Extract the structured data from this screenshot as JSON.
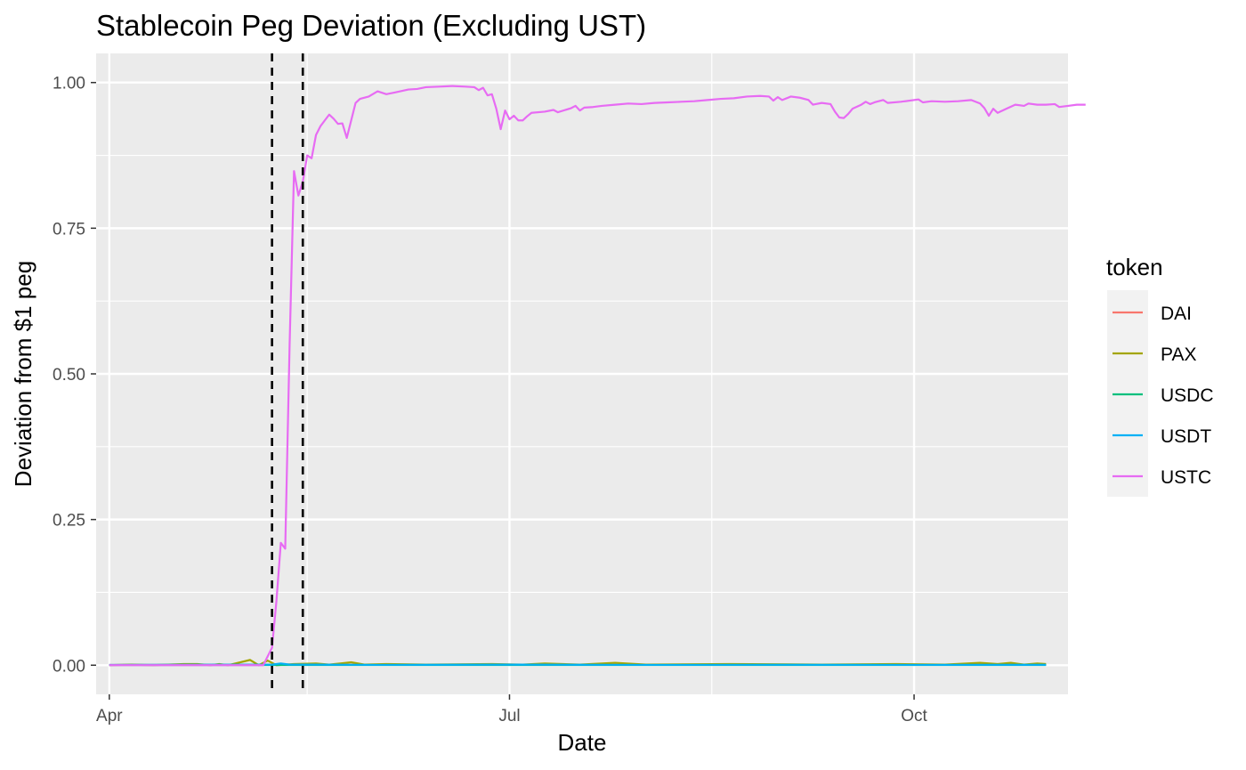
{
  "chart_data": {
    "type": "line",
    "title": "Stablecoin Peg Deviation (Excluding UST)",
    "xlabel": "Date",
    "ylabel": "Deviation from $1 peg",
    "x_axis": {
      "type": "date",
      "range": [
        "2022-03-29",
        "2022-11-05"
      ],
      "ticks": [
        {
          "date": "2022-04-01",
          "label": "Apr"
        },
        {
          "date": "2022-07-01",
          "label": "Jul"
        },
        {
          "date": "2022-10-01",
          "label": "Oct"
        }
      ],
      "minor_ticks": [
        "2022-05-16",
        "2022-08-16"
      ]
    },
    "y_axis": {
      "range": [
        -0.05,
        1.05
      ],
      "ticks": [
        0.0,
        0.25,
        0.5,
        0.75,
        1.0
      ],
      "tick_labels": [
        "0.00",
        "0.25",
        "0.50",
        "0.75",
        "1.00"
      ],
      "minor_ticks": [
        0.125,
        0.375,
        0.625,
        0.875
      ]
    },
    "grid": true,
    "vlines": [
      "2022-05-08",
      "2022-05-15"
    ],
    "legend": {
      "title": "token",
      "position": "right"
    },
    "series": [
      {
        "name": "DAI",
        "color": "#F8766D",
        "points": [
          [
            "2022-04-01",
            0.0005
          ],
          [
            "2022-05-01",
            0.0008
          ],
          [
            "2022-06-01",
            0.0006
          ],
          [
            "2022-07-01",
            0.0008
          ],
          [
            "2022-08-01",
            0.0005
          ],
          [
            "2022-09-01",
            0.0007
          ],
          [
            "2022-10-01",
            0.0006
          ],
          [
            "2022-10-31",
            0.0008
          ]
        ]
      },
      {
        "name": "PAX",
        "color": "#A3A500",
        "points": [
          [
            "2022-04-01",
            0.0
          ],
          [
            "2022-04-06",
            0.001
          ],
          [
            "2022-04-11",
            0.0
          ],
          [
            "2022-04-18",
            0.002
          ],
          [
            "2022-04-21",
            0.002
          ],
          [
            "2022-04-24",
            0.0
          ],
          [
            "2022-04-26",
            0.002
          ],
          [
            "2022-04-28",
            0.0
          ],
          [
            "2022-05-03",
            0.009
          ],
          [
            "2022-05-05",
            0.0
          ],
          [
            "2022-05-07",
            0.008
          ],
          [
            "2022-05-09",
            0.0
          ],
          [
            "2022-05-13",
            0.002
          ],
          [
            "2022-05-18",
            0.003
          ],
          [
            "2022-05-21",
            0.001
          ],
          [
            "2022-05-26",
            0.005
          ],
          [
            "2022-05-29",
            0.001
          ],
          [
            "2022-06-03",
            0.002
          ],
          [
            "2022-06-12",
            0.001
          ],
          [
            "2022-06-27",
            0.002
          ],
          [
            "2022-07-04",
            0.001
          ],
          [
            "2022-07-09",
            0.003
          ],
          [
            "2022-07-17",
            0.001
          ],
          [
            "2022-07-25",
            0.004
          ],
          [
            "2022-08-01",
            0.001
          ],
          [
            "2022-08-20",
            0.002
          ],
          [
            "2022-09-10",
            0.001
          ],
          [
            "2022-09-27",
            0.002
          ],
          [
            "2022-10-08",
            0.001
          ],
          [
            "2022-10-13",
            0.003
          ],
          [
            "2022-10-16",
            0.004
          ],
          [
            "2022-10-20",
            0.002
          ],
          [
            "2022-10-23",
            0.004
          ],
          [
            "2022-10-26",
            0.001
          ],
          [
            "2022-10-29",
            0.003
          ],
          [
            "2022-10-31",
            0.002
          ]
        ]
      },
      {
        "name": "USDC",
        "color": "#00BF7D",
        "points": [
          [
            "2022-04-01",
            0.0003
          ],
          [
            "2022-05-01",
            0.0004
          ],
          [
            "2022-06-01",
            0.0003
          ],
          [
            "2022-07-01",
            0.0004
          ],
          [
            "2022-08-01",
            0.0003
          ],
          [
            "2022-09-01",
            0.0004
          ],
          [
            "2022-10-01",
            0.0003
          ],
          [
            "2022-10-31",
            0.0004
          ]
        ]
      },
      {
        "name": "USDT",
        "color": "#00B0F6",
        "points": [
          [
            "2022-04-01",
            0.0005
          ],
          [
            "2022-05-08",
            0.001
          ],
          [
            "2022-05-10",
            0.003
          ],
          [
            "2022-05-12",
            0.001
          ],
          [
            "2022-05-16",
            0.001
          ],
          [
            "2022-06-01",
            0.0005
          ],
          [
            "2022-07-01",
            0.001
          ],
          [
            "2022-08-01",
            0.0005
          ],
          [
            "2022-09-01",
            0.0007
          ],
          [
            "2022-10-01",
            0.0005
          ],
          [
            "2022-10-31",
            0.0006
          ]
        ]
      },
      {
        "name": "USTC",
        "color": "#E76BF3",
        "points": [
          [
            "2022-04-01",
            0.0
          ],
          [
            "2022-05-06",
            0.0
          ],
          [
            "2022-05-08",
            0.03
          ],
          [
            "2022-05-09",
            0.11
          ],
          [
            "2022-05-10",
            0.21
          ],
          [
            "2022-05-11",
            0.2
          ],
          [
            "2022-05-12",
            0.55
          ],
          [
            "2022-05-13",
            0.848
          ],
          [
            "2022-05-14",
            0.806
          ],
          [
            "2022-05-15",
            0.83
          ],
          [
            "2022-05-16",
            0.875
          ],
          [
            "2022-05-17",
            0.87
          ],
          [
            "2022-05-18",
            0.91
          ],
          [
            "2022-05-19",
            0.925
          ],
          [
            "2022-05-20",
            0.935
          ],
          [
            "2022-05-21",
            0.945
          ],
          [
            "2022-05-22",
            0.938
          ],
          [
            "2022-05-23",
            0.929
          ],
          [
            "2022-05-24",
            0.93
          ],
          [
            "2022-05-25",
            0.905
          ],
          [
            "2022-05-26",
            0.935
          ],
          [
            "2022-05-27",
            0.965
          ],
          [
            "2022-05-28",
            0.972
          ],
          [
            "2022-05-30",
            0.976
          ],
          [
            "2022-06-01",
            0.985
          ],
          [
            "2022-06-03",
            0.98
          ],
          [
            "2022-06-05",
            0.983
          ],
          [
            "2022-06-08",
            0.988
          ],
          [
            "2022-06-10",
            0.989
          ],
          [
            "2022-06-12",
            0.992
          ],
          [
            "2022-06-15",
            0.993
          ],
          [
            "2022-06-18",
            0.994
          ],
          [
            "2022-06-21",
            0.993
          ],
          [
            "2022-06-23",
            0.992
          ],
          [
            "2022-06-24",
            0.987
          ],
          [
            "2022-06-25",
            0.991
          ],
          [
            "2022-06-26",
            0.978
          ],
          [
            "2022-06-27",
            0.98
          ],
          [
            "2022-06-28",
            0.955
          ],
          [
            "2022-06-29",
            0.92
          ],
          [
            "2022-06-30",
            0.952
          ],
          [
            "2022-07-01",
            0.937
          ],
          [
            "2022-07-02",
            0.943
          ],
          [
            "2022-07-03",
            0.935
          ],
          [
            "2022-07-04",
            0.935
          ],
          [
            "2022-07-05",
            0.942
          ],
          [
            "2022-07-06",
            0.948
          ],
          [
            "2022-07-09",
            0.95
          ],
          [
            "2022-07-11",
            0.953
          ],
          [
            "2022-07-12",
            0.949
          ],
          [
            "2022-07-15",
            0.956
          ],
          [
            "2022-07-16",
            0.96
          ],
          [
            "2022-07-17",
            0.952
          ],
          [
            "2022-07-18",
            0.957
          ],
          [
            "2022-07-20",
            0.958
          ],
          [
            "2022-07-22",
            0.96
          ],
          [
            "2022-07-25",
            0.962
          ],
          [
            "2022-07-28",
            0.964
          ],
          [
            "2022-07-31",
            0.963
          ],
          [
            "2022-08-03",
            0.965
          ],
          [
            "2022-08-06",
            0.966
          ],
          [
            "2022-08-09",
            0.967
          ],
          [
            "2022-08-12",
            0.968
          ],
          [
            "2022-08-15",
            0.97
          ],
          [
            "2022-08-18",
            0.972
          ],
          [
            "2022-08-21",
            0.973
          ],
          [
            "2022-08-24",
            0.976
          ],
          [
            "2022-08-27",
            0.977
          ],
          [
            "2022-08-29",
            0.976
          ],
          [
            "2022-08-30",
            0.969
          ],
          [
            "2022-08-31",
            0.975
          ],
          [
            "2022-09-01",
            0.97
          ],
          [
            "2022-09-03",
            0.976
          ],
          [
            "2022-09-05",
            0.974
          ],
          [
            "2022-09-07",
            0.97
          ],
          [
            "2022-09-08",
            0.962
          ],
          [
            "2022-09-10",
            0.965
          ],
          [
            "2022-09-12",
            0.963
          ],
          [
            "2022-09-13",
            0.95
          ],
          [
            "2022-09-14",
            0.94
          ],
          [
            "2022-09-15",
            0.939
          ],
          [
            "2022-09-16",
            0.946
          ],
          [
            "2022-09-17",
            0.955
          ],
          [
            "2022-09-19",
            0.962
          ],
          [
            "2022-09-20",
            0.967
          ],
          [
            "2022-09-21",
            0.963
          ],
          [
            "2022-09-22",
            0.966
          ],
          [
            "2022-09-24",
            0.97
          ],
          [
            "2022-09-25",
            0.965
          ],
          [
            "2022-09-28",
            0.967
          ],
          [
            "2022-10-02",
            0.971
          ],
          [
            "2022-10-03",
            0.966
          ],
          [
            "2022-10-05",
            0.968
          ],
          [
            "2022-10-08",
            0.967
          ],
          [
            "2022-10-11",
            0.968
          ],
          [
            "2022-10-14",
            0.97
          ],
          [
            "2022-10-16",
            0.964
          ],
          [
            "2022-10-17",
            0.956
          ],
          [
            "2022-10-18",
            0.943
          ],
          [
            "2022-10-19",
            0.955
          ],
          [
            "2022-10-20",
            0.948
          ],
          [
            "2022-10-22",
            0.955
          ],
          [
            "2022-10-24",
            0.962
          ],
          [
            "2022-10-26",
            0.96
          ],
          [
            "2022-10-27",
            0.964
          ],
          [
            "2022-10-29",
            0.962
          ],
          [
            "2022-10-31",
            0.962
          ],
          [
            "2022-11-02",
            0.963
          ],
          [
            "2022-11-03",
            0.958
          ],
          [
            "2022-11-05",
            0.96
          ],
          [
            "2022-11-07",
            0.962
          ],
          [
            "2022-11-09",
            0.962
          ]
        ]
      }
    ]
  }
}
